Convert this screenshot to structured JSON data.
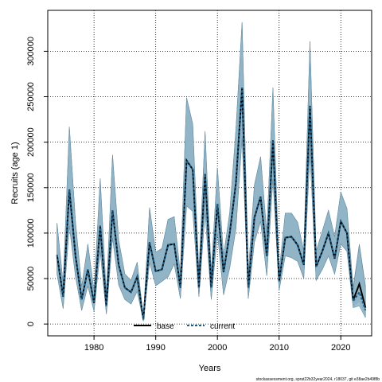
{
  "chart_data": {
    "type": "line",
    "xlabel": "Years",
    "ylabel": "Recruits (age 1)",
    "xlim": [
      1972.5,
      2025.0
    ],
    "ylim": [
      -13000,
      345000
    ],
    "xticks": [
      1980,
      1990,
      2000,
      2010,
      2020
    ],
    "yticks": [
      0,
      50000,
      100000,
      150000,
      200000,
      250000,
      300000
    ],
    "ytick_labels": [
      "0",
      "50000",
      "100000",
      "150000",
      "200000",
      "250000",
      "300000"
    ],
    "grid": true,
    "legend_position": "bottom-center",
    "legend": [
      "base",
      "current"
    ],
    "footnote": "stockassessment.org, sprat22b32year2024, r18037, git e38ae2b49f8b",
    "x": [
      1974,
      1975,
      1976,
      1977,
      1978,
      1979,
      1980,
      1981,
      1982,
      1983,
      1984,
      1985,
      1986,
      1987,
      1988,
      1989,
      1990,
      1991,
      1992,
      1993,
      1994,
      1995,
      1996,
      1997,
      1998,
      1999,
      2000,
      2001,
      2002,
      2003,
      2004,
      2005,
      2006,
      2007,
      2008,
      2009,
      2010,
      2011,
      2012,
      2013,
      2014,
      2015,
      2016,
      2017,
      2018,
      2019,
      2020,
      2021,
      2022,
      2023,
      2024
    ],
    "series": [
      {
        "name": "current",
        "color": "#1a5f8a",
        "values": [
          76000,
          30000,
          148000,
          75000,
          27000,
          60000,
          23000,
          108000,
          20000,
          125000,
          65000,
          40000,
          35000,
          52000,
          5000,
          90000,
          58000,
          60000,
          87000,
          88000,
          40000,
          180000,
          170000,
          40000,
          165000,
          40000,
          132000,
          57000,
          100000,
          155000,
          260000,
          40000,
          117000,
          140000,
          75000,
          202000,
          47000,
          95000,
          96000,
          87000,
          65000,
          240000,
          63000,
          80000,
          100000,
          72000,
          113000,
          100000,
          25000,
          35000,
          15000
        ],
        "lower": [
          55000,
          17000,
          108000,
          52000,
          15000,
          42000,
          14000,
          80000,
          11000,
          95000,
          43000,
          27000,
          22000,
          36000,
          3000,
          68000,
          42000,
          47000,
          52000,
          66000,
          28000,
          130000,
          124000,
          30000,
          123000,
          27000,
          100000,
          32000,
          62000,
          105000,
          205000,
          28000,
          90000,
          113000,
          53000,
          160000,
          37000,
          75000,
          73000,
          69000,
          50000,
          188000,
          48000,
          60000,
          75000,
          55000,
          88000,
          80000,
          18000,
          20000,
          7000
        ],
        "upper": [
          111000,
          44000,
          217000,
          112000,
          41000,
          88000,
          36000,
          160000,
          32000,
          186000,
          92000,
          55000,
          48000,
          68000,
          7000,
          128000,
          79000,
          83000,
          115000,
          118000,
          55000,
          249000,
          220000,
          56000,
          212000,
          56000,
          172000,
          75000,
          123000,
          214000,
          332000,
          56000,
          153000,
          184000,
          100000,
          260000,
          57000,
          122000,
          122000,
          112000,
          80000,
          311000,
          80000,
          102000,
          125000,
          96000,
          145000,
          127000,
          38000,
          87000,
          40000
        ],
        "ci_fill": "#8db7cc"
      },
      {
        "name": "base",
        "color": "#000000",
        "values": [
          76000,
          30000,
          148000,
          75000,
          27000,
          60000,
          23000,
          108000,
          20000,
          125000,
          65000,
          40000,
          35000,
          52000,
          5000,
          90000,
          58000,
          60000,
          87000,
          88000,
          40000,
          180000,
          170000,
          40000,
          165000,
          40000,
          132000,
          57000,
          100000,
          155000,
          260000,
          40000,
          117000,
          140000,
          75000,
          202000,
          47000,
          95000,
          96000,
          87000,
          65000,
          240000,
          63000,
          80000,
          100000,
          72000,
          113000,
          100000,
          26000,
          44000,
          18000
        ],
        "lower": [
          55000,
          17000,
          108000,
          52000,
          15000,
          42000,
          14000,
          80000,
          11000,
          95000,
          43000,
          27000,
          22000,
          36000,
          3000,
          68000,
          42000,
          47000,
          52000,
          66000,
          28000,
          130000,
          124000,
          30000,
          123000,
          27000,
          100000,
          32000,
          62000,
          105000,
          205000,
          28000,
          90000,
          113000,
          53000,
          160000,
          37000,
          75000,
          73000,
          69000,
          50000,
          188000,
          48000,
          60000,
          75000,
          55000,
          88000,
          80000,
          19000,
          25000,
          8000
        ],
        "upper": [
          111000,
          44000,
          217000,
          112000,
          41000,
          88000,
          36000,
          160000,
          32000,
          186000,
          92000,
          55000,
          48000,
          68000,
          7000,
          128000,
          79000,
          83000,
          115000,
          118000,
          55000,
          249000,
          220000,
          56000,
          212000,
          56000,
          172000,
          75000,
          123000,
          214000,
          332000,
          56000,
          153000,
          184000,
          100000,
          260000,
          57000,
          122000,
          122000,
          112000,
          80000,
          311000,
          80000,
          102000,
          125000,
          96000,
          145000,
          127000,
          40000,
          88000,
          42000
        ],
        "ci_fill": "#9e9e9e"
      }
    ]
  }
}
